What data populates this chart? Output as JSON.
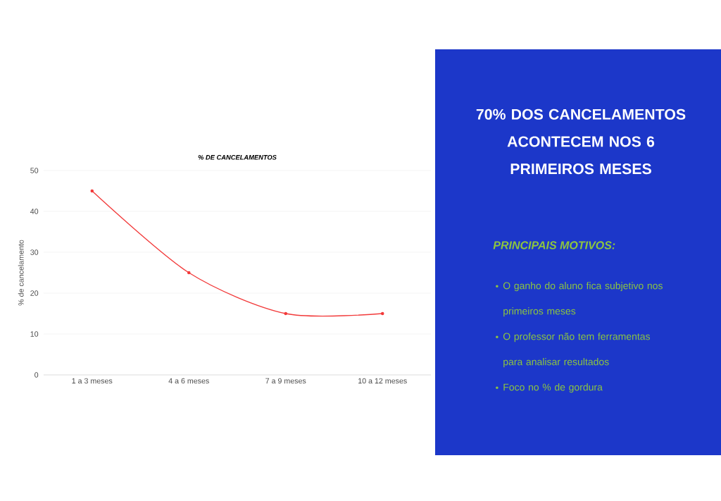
{
  "chart_data": [
    {
      "type": "line",
      "title": "% DE CANCELAMENTOS",
      "ylabel": "% de cancelamento",
      "categories": [
        "1 a 3 meses",
        "4 a 6 meses",
        "7 a 9 meses",
        "10 a 12 meses"
      ],
      "series": [
        {
          "color": "#f23a3a",
          "values": [
            45,
            25,
            15,
            15
          ]
        }
      ],
      "ylim": [
        0,
        50
      ],
      "yticks": [
        0,
        10,
        20,
        30,
        40,
        50
      ],
      "grid": "y",
      "marker": "circle",
      "line_style": "solid"
    },
    {
      "type": "other",
      "title": "70% DOS CANCELAMENTOS ACONTECEM NOS 6 PRIMEIROS MESES",
      "subtitle": "PRINCIPAIS MOTIVOS:",
      "annotations": [
        "O ganho do aluno fica subjetivo nos primeiros meses",
        "O professor não tem ferramentas para analisar resultados",
        "Foco no % de gordura"
      ]
    }
  ]
}
